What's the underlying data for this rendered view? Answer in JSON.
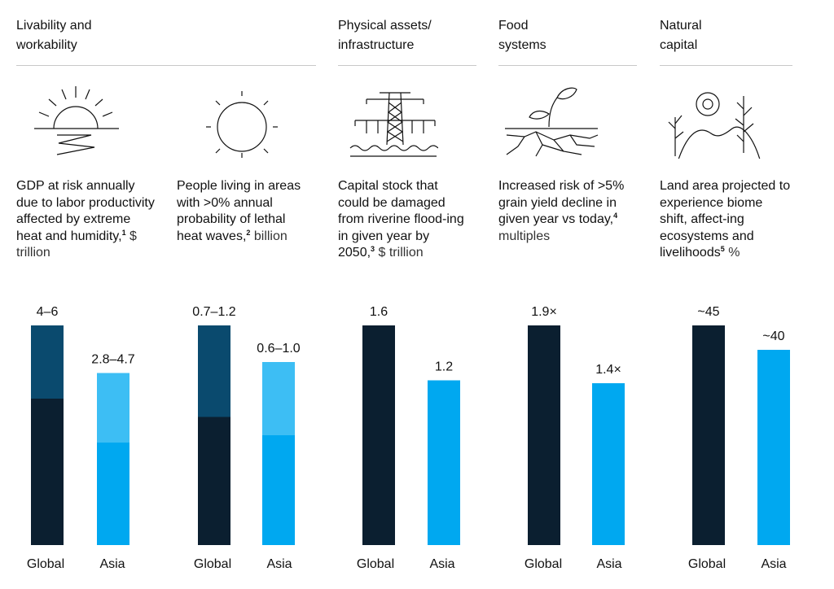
{
  "categories": [
    {
      "title": "Livability and\nworkability"
    },
    {
      "title": "Physical assets/\ninfrastructure"
    },
    {
      "title": "Food\nsystems"
    },
    {
      "title": "Natural\ncapital"
    }
  ],
  "icons": [
    "sunset-heat-icon",
    "sun-icon",
    "transmission-tower-flood-icon",
    "cracked-soil-sprout-icon",
    "biome-landscape-icon"
  ],
  "panels": [
    {
      "desc": "GDP at risk annually due to labor productivity affected by extreme heat and humidity,",
      "sup": "1",
      "unit": "$ trillion"
    },
    {
      "desc": "People living in areas with >0% annual probability of lethal heat waves,",
      "sup": "2",
      "unit": "billion"
    },
    {
      "desc": "Capital stock that could be damaged from riverine flood-ing in given year by 2050,",
      "sup": "3",
      "unit": "$ trillion"
    },
    {
      "desc": "Increased risk of >5% grain yield decline in given year vs today,",
      "sup": "4",
      "unit": "multiples"
    },
    {
      "desc": "Land area projected to experience biome shift, affect-ing ecosystems and livelihoods",
      "sup": "5",
      "unit": "%"
    }
  ],
  "colors": {
    "global_dark": "#0b1f30",
    "global_range": "#0a4a6e",
    "asia": "#00a8f0",
    "asia_range": "#3dbef4",
    "rule": "#c8c8c8"
  },
  "chart_data": [
    {
      "type": "bar",
      "categories": [
        "Global",
        "Asia"
      ],
      "series": [
        {
          "values": [
            [
              4,
              6
            ],
            [
              2.8,
              4.7
            ]
          ]
        }
      ],
      "labels": [
        "4–6",
        "2.8–4.7"
      ],
      "range_bars": true,
      "ylim": [
        0,
        6
      ]
    },
    {
      "type": "bar",
      "categories": [
        "Global",
        "Asia"
      ],
      "series": [
        {
          "values": [
            [
              0.7,
              1.2
            ],
            [
              0.6,
              1.0
            ]
          ]
        }
      ],
      "labels": [
        "0.7–1.2",
        "0.6–1.0"
      ],
      "range_bars": true,
      "ylim": [
        0,
        1.2
      ]
    },
    {
      "type": "bar",
      "categories": [
        "Global",
        "Asia"
      ],
      "series": [
        {
          "values": [
            1.6,
            1.2
          ]
        }
      ],
      "labels": [
        "1.6",
        "1.2"
      ],
      "range_bars": false,
      "ylim": [
        0,
        1.6
      ]
    },
    {
      "type": "bar",
      "categories": [
        "Global",
        "Asia"
      ],
      "series": [
        {
          "values": [
            1.9,
            1.4
          ]
        }
      ],
      "labels": [
        "1.9×",
        "1.4×"
      ],
      "range_bars": false,
      "ylim": [
        0,
        1.9
      ]
    },
    {
      "type": "bar",
      "categories": [
        "Global",
        "Asia"
      ],
      "series": [
        {
          "values": [
            45,
            40
          ]
        }
      ],
      "labels": [
        "~45",
        "~40"
      ],
      "range_bars": false,
      "ylim": [
        0,
        45
      ]
    }
  ]
}
